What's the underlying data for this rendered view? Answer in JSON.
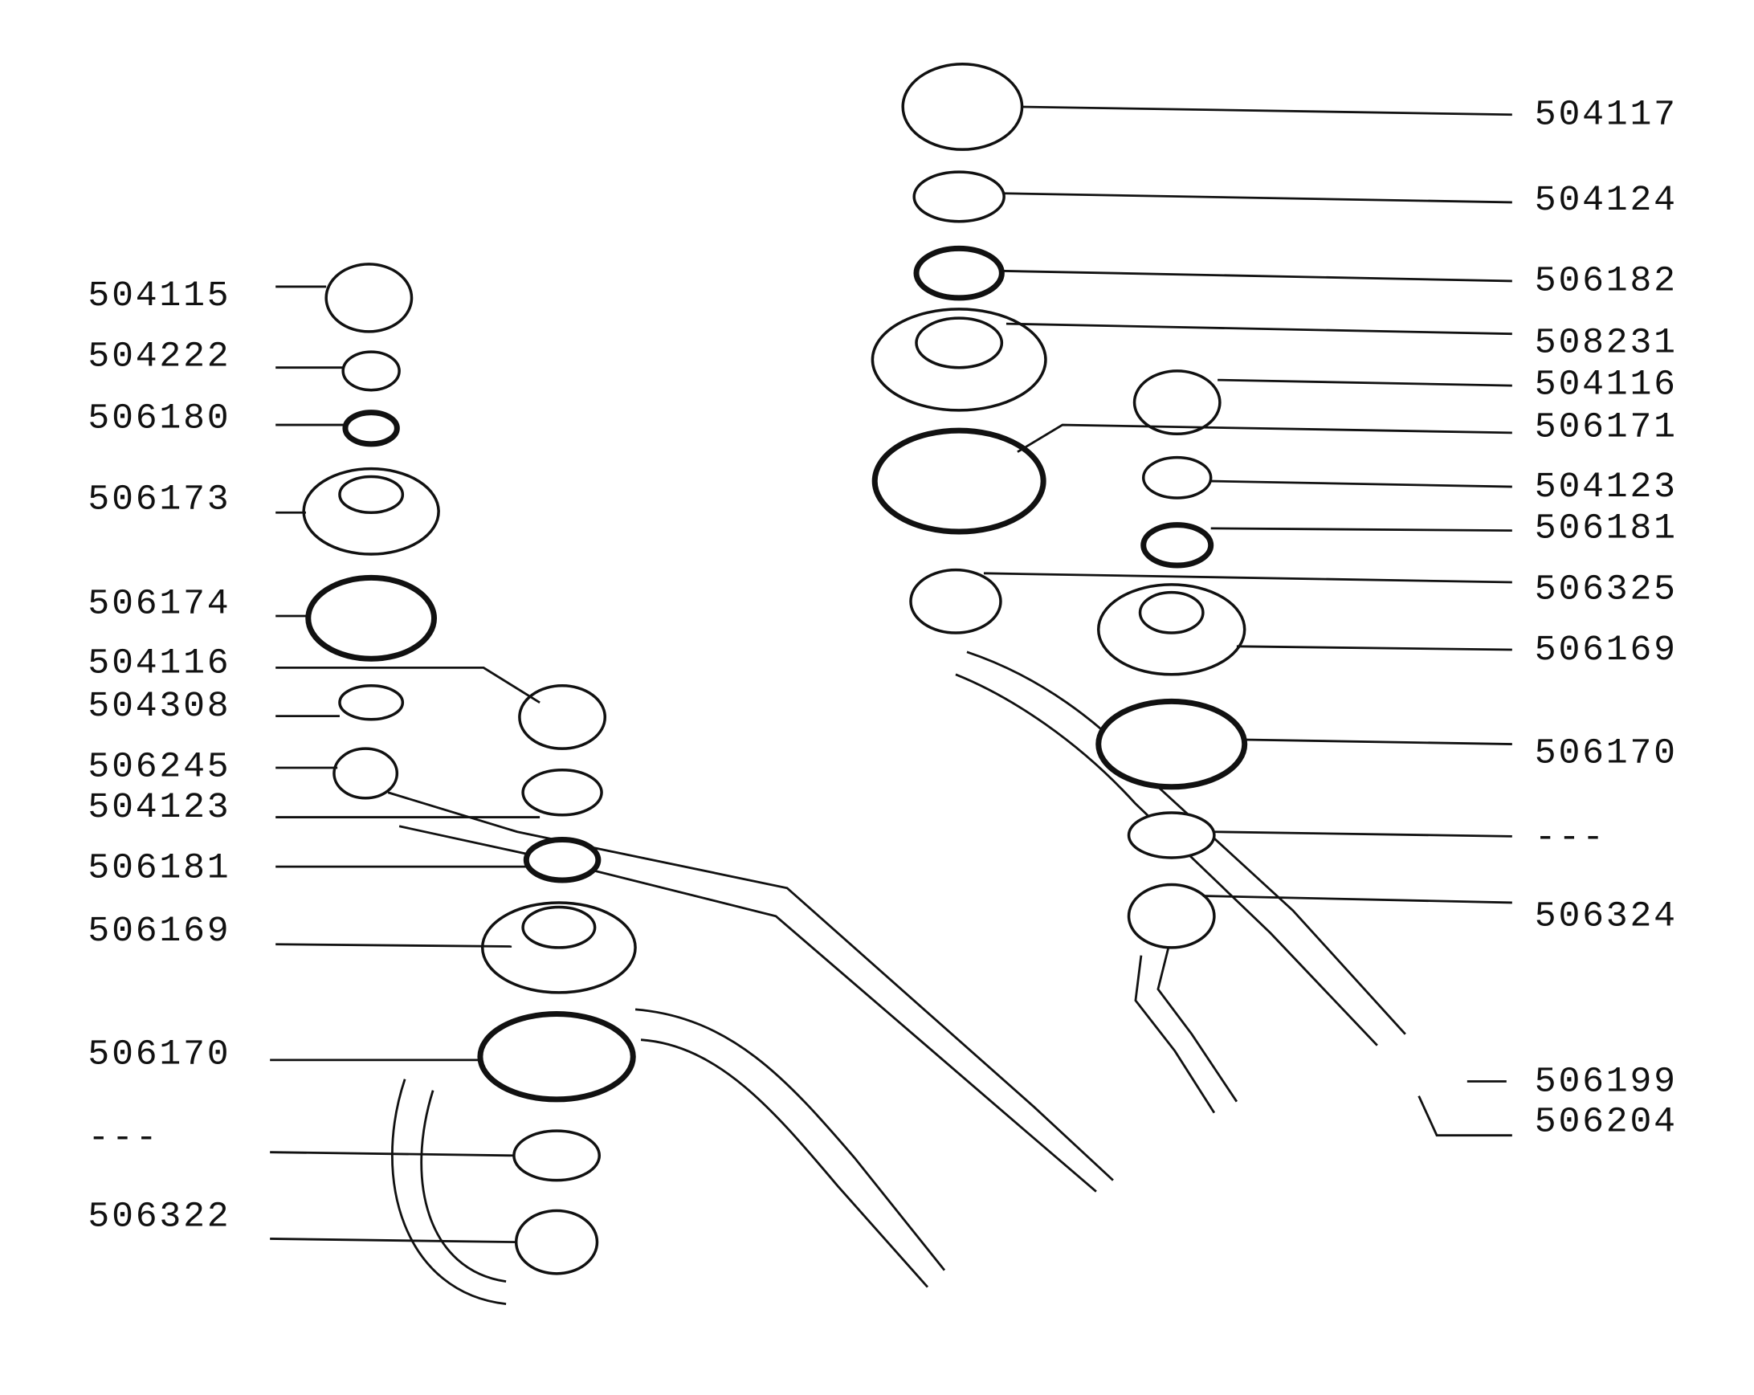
{
  "left_labels": [
    "504115",
    "504222",
    "506180",
    "506173",
    "506174",
    "504116",
    "504308",
    "506245",
    "504123",
    "506181",
    "506169",
    "506170",
    "---",
    "506322"
  ],
  "right_labels": [
    "504117",
    "504124",
    "506182",
    "508231",
    "504116",
    "506171",
    "504123",
    "506181",
    "506325",
    "506169",
    "506170",
    "---",
    "506324",
    "506199",
    "506204"
  ]
}
